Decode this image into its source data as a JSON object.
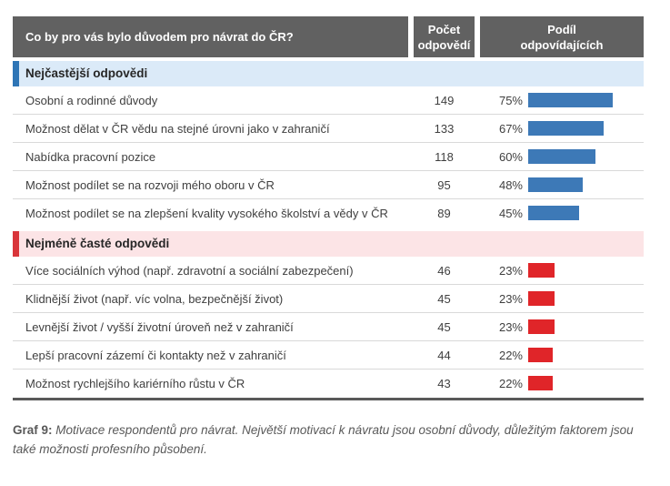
{
  "header": {
    "question": "Co by pro vás bylo důvodem pro návrat do ČR?",
    "col_count_line1": "Počet",
    "col_count_line2": "odpovědí",
    "col_share_line1": "Podíl",
    "col_share_line2": "odpovídajících"
  },
  "colors": {
    "header_bg": "#616161",
    "blue_accent": "#2e75b6",
    "blue_section_bg": "#dbeaf8",
    "blue_bar": "#3d79b7",
    "red_accent": "#d9353a",
    "red_section_bg": "#fce4e6",
    "red_bar": "#e02529",
    "separator": "#d9d9d9",
    "text": "#3f3f3f"
  },
  "sections": [
    {
      "label": "Nejčastější odpovědi",
      "accent": "#2e75b6",
      "bg": "#dbeaf8",
      "bar_color": "#3d79b7",
      "rows": [
        {
          "label": "Osobní a rodinné důvody",
          "count": 149,
          "pct": 75
        },
        {
          "label": "Možnost dělat v ČR vědu na stejné úrovni jako v zahraničí",
          "count": 133,
          "pct": 67
        },
        {
          "label": "Nabídka pracovní pozice",
          "count": 118,
          "pct": 60
        },
        {
          "label": "Možnost podílet se na rozvoji mého oboru v ČR",
          "count": 95,
          "pct": 48
        },
        {
          "label": "Možnost podílet se na zlepšení kvality vysokého školství a vědy v ČR",
          "count": 89,
          "pct": 45
        }
      ]
    },
    {
      "label": "Nejméně časté odpovědi",
      "accent": "#d9353a",
      "bg": "#fce4e6",
      "bar_color": "#e02529",
      "rows": [
        {
          "label": "Více sociálních výhod (např. zdravotní a sociální zabezpečení)",
          "count": 46,
          "pct": 23
        },
        {
          "label": "Klidnější život (např. víc volna, bezpečnější život)",
          "count": 45,
          "pct": 23
        },
        {
          "label": "Levnější život / vyšší životní úroveň než v zahraničí",
          "count": 45,
          "pct": 23
        },
        {
          "label": "Lepší pracovní zázemí či kontakty než v zahraničí",
          "count": 44,
          "pct": 22
        },
        {
          "label": "Možnost rychlejšího kariérního růstu v ČR",
          "count": 43,
          "pct": 22
        }
      ]
    }
  ],
  "caption": {
    "label": "Graf 9:",
    "text": "Motivace respondentů pro návrat. Největší motivací k návratu jsou osobní důvody, důležitým faktorem jsou také možnosti profesního působení."
  },
  "chart_data": {
    "type": "bar",
    "title": "Co by pro vás bylo důvodem pro návrat do ČR?",
    "columns": [
      "Počet odpovědí",
      "Podíl odpovídajících"
    ],
    "value_axis": {
      "unit": "%",
      "min": 0,
      "max": 100
    },
    "legend_position": "none",
    "series": [
      {
        "name": "Nejčastější odpovědi",
        "color": "#3d79b7",
        "categories": [
          "Osobní a rodinné důvody",
          "Možnost dělat v ČR vědu na stejné úrovni jako v zahraničí",
          "Nabídka pracovní pozice",
          "Možnost podílet se na rozvoji mého oboru v ČR",
          "Možnost podílet se na zlepšení kvality vysokého školství a vědy v ČR"
        ],
        "counts": [
          149,
          133,
          118,
          95,
          89
        ],
        "percents": [
          75,
          67,
          60,
          48,
          45
        ]
      },
      {
        "name": "Nejméně časté odpovědi",
        "color": "#e02529",
        "categories": [
          "Více sociálních výhod (např. zdravotní a sociální zabezpečení)",
          "Klidnější život (např. víc volna, bezpečnější život)",
          "Levnější život / vyšší životní úroveň než v zahraničí",
          "Lepší pracovní zázemí či kontakty než v zahraničí",
          "Možnost rychlejšího kariérního růstu v ČR"
        ],
        "counts": [
          46,
          45,
          45,
          44,
          43
        ],
        "percents": [
          23,
          23,
          23,
          22,
          22
        ]
      }
    ]
  }
}
